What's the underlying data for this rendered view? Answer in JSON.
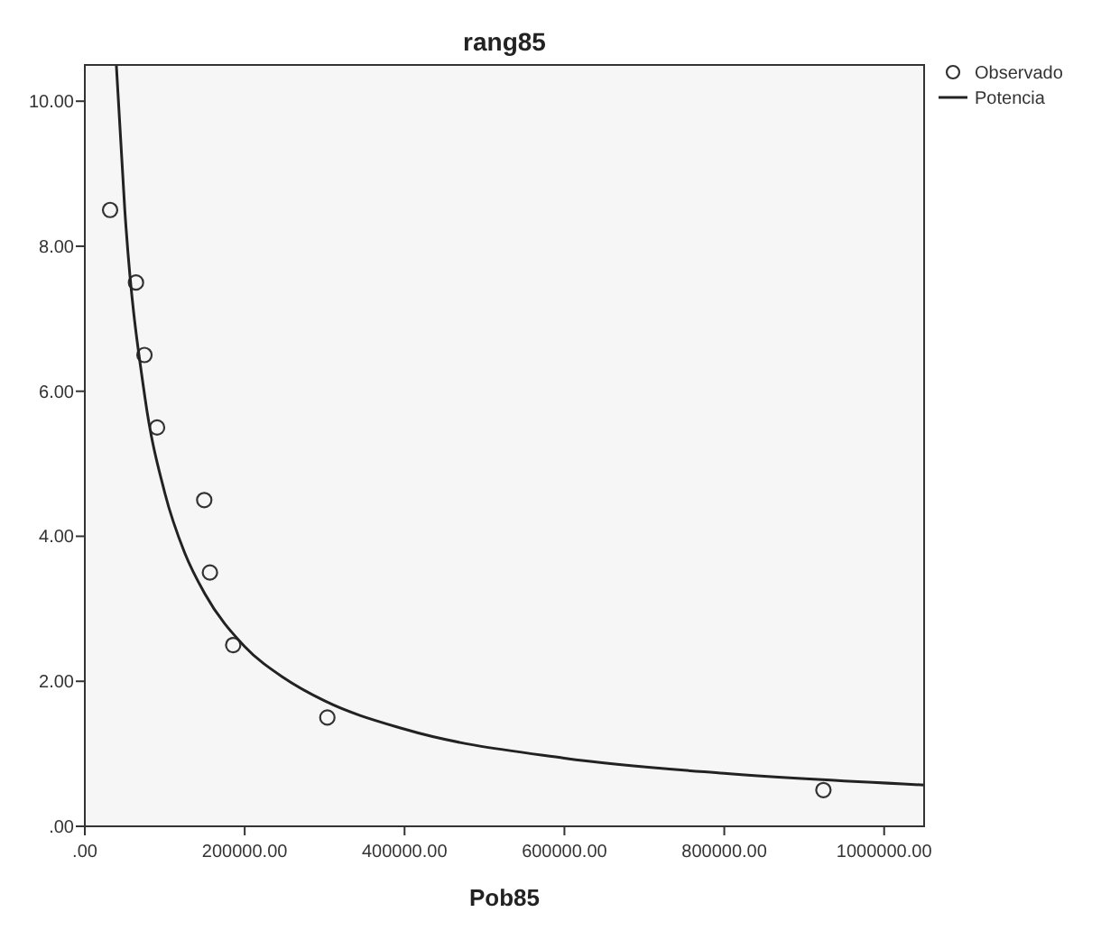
{
  "chart_data": {
    "type": "scatter",
    "title": "rang85",
    "xlabel": "Pob85",
    "xlim": [
      0,
      1050000
    ],
    "ylim": [
      0,
      10.5
    ],
    "xticks": [
      {
        "value": 0,
        "label": ".00"
      },
      {
        "value": 200000,
        "label": "200000.00"
      },
      {
        "value": 400000,
        "label": "400000.00"
      },
      {
        "value": 600000,
        "label": "600000.00"
      },
      {
        "value": 800000,
        "label": "800000.00"
      },
      {
        "value": 1000000,
        "label": "1000000.00"
      }
    ],
    "yticks": [
      {
        "value": 0,
        "label": ".00"
      },
      {
        "value": 2,
        "label": "2.00"
      },
      {
        "value": 4,
        "label": "4.00"
      },
      {
        "value": 6,
        "label": "6.00"
      },
      {
        "value": 8,
        "label": "8.00"
      },
      {
        "value": 10,
        "label": "10.00"
      }
    ],
    "grid": false,
    "legend": "top right",
    "series": [
      {
        "name": "Observado",
        "marker": "circle",
        "color": "#333333",
        "x": [
          31600,
          64000,
          74600,
          90400,
          149400,
          156500,
          185600,
          303400,
          924000
        ],
        "values": [
          8.5,
          7.5,
          6.5,
          5.5,
          4.5,
          3.5,
          2.5,
          1.5,
          0.5
        ]
      },
      {
        "name": "Potencia",
        "type": "line",
        "marker": "none",
        "line_style": "solid",
        "color": "#222222",
        "x": [
          39400,
          50000,
          75000,
          100000,
          125000,
          150000,
          200000,
          250000,
          300000,
          400000,
          600000,
          800000,
          1050000
        ],
        "values": [
          10.5,
          8.5,
          5.93,
          4.6,
          3.77,
          3.21,
          2.48,
          2.04,
          1.73,
          1.34,
          0.94,
          0.73,
          0.57
        ]
      }
    ]
  }
}
